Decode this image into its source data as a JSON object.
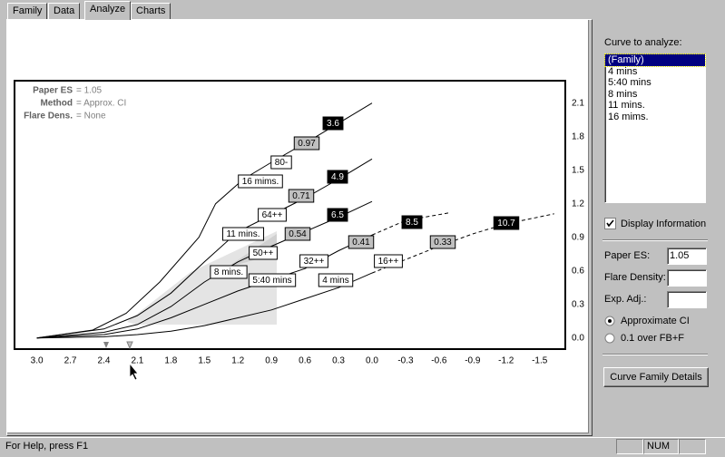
{
  "tabs": [
    "Family",
    "Data",
    "Analyze",
    "Charts"
  ],
  "selected_tab": 2,
  "info": [
    {
      "key": "Paper ES",
      "value": "= 1.05"
    },
    {
      "key": "Method",
      "value": "= Approx. CI"
    },
    {
      "key": "Flare Dens.",
      "value": "= None"
    }
  ],
  "chart": {
    "type": "line",
    "xlim": [
      3.2,
      -1.73
    ],
    "ylim": [
      -0.1,
      2.3
    ],
    "xticks": [
      {
        "value": 3,
        "label": "3.0"
      },
      2.7,
      2.4,
      2.1,
      1.8,
      1.5,
      1.2,
      0.9,
      0.6,
      0.3,
      {
        "value": 0,
        "label": "0.0"
      },
      -0.3,
      -0.6,
      -0.9,
      -1.2,
      -1.5
    ],
    "yticks": [
      2.1,
      1.8,
      1.5,
      1.2,
      0.9,
      0.6,
      0.3,
      {
        "value": 0,
        "label": "0.0"
      }
    ],
    "color": "#000000",
    "series": [
      {
        "x": [
          3.0,
          2.5,
          2.2,
          1.9,
          1.55,
          1.4,
          1.15,
          0.9,
          0.5,
          0.25,
          0.0
        ],
        "y": [
          0,
          0.07,
          0.22,
          0.5,
          0.9,
          1.2,
          1.42,
          1.57,
          1.8,
          1.95,
          2.1
        ]
      },
      {
        "x": [
          3.0,
          2.4,
          2.1,
          1.8,
          1.5,
          1.2,
          0.9,
          0.6,
          0.3,
          0.0
        ],
        "y": [
          0,
          0.08,
          0.2,
          0.4,
          0.68,
          0.95,
          1.1,
          1.25,
          1.42,
          1.6
        ]
      },
      {
        "x": [
          3.0,
          2.4,
          2.1,
          1.8,
          1.5,
          1.2,
          0.9,
          0.6,
          0.3,
          0.0
        ],
        "y": [
          0,
          0.05,
          0.12,
          0.28,
          0.5,
          0.68,
          0.82,
          0.95,
          1.08,
          1.22
        ]
      },
      {
        "x": [
          3.0,
          2.4,
          2.1,
          1.8,
          1.5,
          1.2,
          0.9,
          0.6,
          0.3,
          0.0,
          -0.3,
          -0.7
        ],
        "y": [
          0,
          0.03,
          0.08,
          0.18,
          0.3,
          0.42,
          0.52,
          0.62,
          0.78,
          0.92,
          1.05,
          1.12
        ]
      },
      {
        "x": [
          3.0,
          2.4,
          2.1,
          1.8,
          1.5,
          1.2,
          0.9,
          0.6,
          0.3,
          0.0,
          -0.3,
          -0.6,
          -0.9,
          -1.2,
          -1.63
        ],
        "y": [
          0,
          0.01,
          0.03,
          0.06,
          0.11,
          0.18,
          0.25,
          0.35,
          0.45,
          0.58,
          0.7,
          0.82,
          0.93,
          1.02,
          1.11
        ]
      }
    ],
    "annotations": [
      {
        "text": "3.6",
        "style": "black"
      },
      {
        "text": "0.97",
        "style": "gray"
      },
      {
        "text": "80-",
        "style": "white"
      },
      {
        "text": "16 mims.",
        "style": "white"
      },
      {
        "text": "4.9",
        "style": "black"
      },
      {
        "text": "0.71",
        "style": "gray"
      },
      {
        "text": "64++",
        "style": "white"
      },
      {
        "text": "11 mins.",
        "style": "white"
      },
      {
        "text": "6.5",
        "style": "black"
      },
      {
        "text": "0.54",
        "style": "gray"
      },
      {
        "text": "50++",
        "style": "white"
      },
      {
        "text": "8 mins.",
        "style": "white"
      },
      {
        "text": "5:40 mins",
        "style": "white"
      },
      {
        "text": "32++",
        "style": "white"
      },
      {
        "text": "0.41",
        "style": "gray"
      },
      {
        "text": "8.5",
        "style": "black"
      },
      {
        "text": "16++",
        "style": "white"
      },
      {
        "text": "0.33",
        "style": "gray"
      },
      {
        "text": "10.7",
        "style": "black"
      },
      {
        "text": "4 mins",
        "style": "white"
      }
    ]
  },
  "panel": {
    "list_label": "Curve to analyze:",
    "list_items": [
      "(Family)",
      "4  mins",
      "5:40 mins",
      "8 mins",
      "11 mins.",
      "16 mims."
    ],
    "selected_item": 0,
    "checkbox": {
      "label": "Display Information",
      "checked": true
    },
    "fields": [
      {
        "label": "Paper ES:",
        "value": "1.05"
      },
      {
        "label": "Flare Density:",
        "value": ""
      },
      {
        "label": "Exp. Adj.:",
        "value": ""
      }
    ],
    "radios": [
      "Approximate CI",
      "0.1 over FB+F"
    ],
    "selected_radio": 0,
    "button": "Curve Family Details"
  },
  "status": {
    "help": "For Help, press F1",
    "num": "NUM"
  }
}
